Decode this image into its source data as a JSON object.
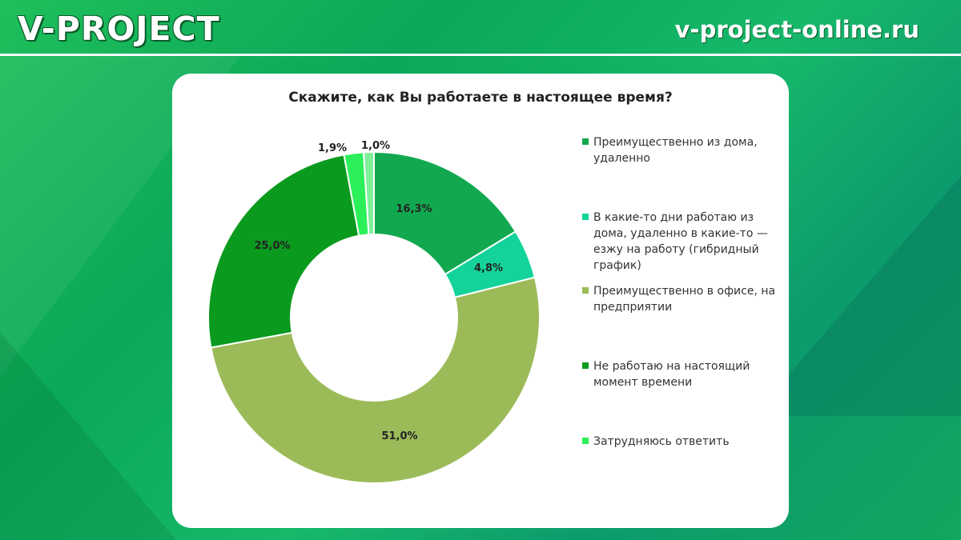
{
  "header": {
    "brand": "V-PROJECT",
    "site": "v-project-online.ru"
  },
  "colors": {
    "remote": "#12a84f",
    "hybrid": "#14d39a",
    "office": "#9bbb59",
    "not_working": "#0a9a1e",
    "hard_to_say": "#2cf05a"
  },
  "chart_data": {
    "type": "pie",
    "donut": true,
    "title": "Скажите, как Вы работаете в настоящее время?",
    "legend_position": "right",
    "slices": [
      {
        "label": "Преимущественно из дома, удаленно",
        "value": 16.3,
        "display": "16,3%",
        "color": "#12a84f"
      },
      {
        "label": "В какие-то дни работаю из дома, удаленно в какие-то — езжу на работу (гибридный график)",
        "value": 4.8,
        "display": "4,8%",
        "color": "#14d39a"
      },
      {
        "label": "Преимущественно в офисе, на предприятии",
        "value": 51.0,
        "display": "51,0%",
        "color": "#9bbb59"
      },
      {
        "label": "Не работаю на настоящий момент времени",
        "value": 25.0,
        "display": "25,0%",
        "color": "#0a9a1e"
      },
      {
        "label": "Затрудняюсь ответить",
        "value": 1.9,
        "display": "1,9%",
        "color": "#2cf05a"
      },
      {
        "label": "",
        "value": 1.0,
        "display": "1,0%",
        "color": "#7ef09a"
      }
    ],
    "legend": [
      {
        "label": "Преимущественно из дома, удаленно",
        "color": "#12a84f"
      },
      {
        "label": "В какие-то дни работаю из дома, удаленно в какие-то — езжу на работу (гибридный график)",
        "color": "#14d39a"
      },
      {
        "label": "Преимущественно в офисе, на предприятии",
        "color": "#9bbb59"
      },
      {
        "label": "Не работаю на настоящий момент времени",
        "color": "#0a9a1e"
      },
      {
        "label": "Затрудняюсь ответить",
        "color": "#2cf05a"
      }
    ]
  }
}
